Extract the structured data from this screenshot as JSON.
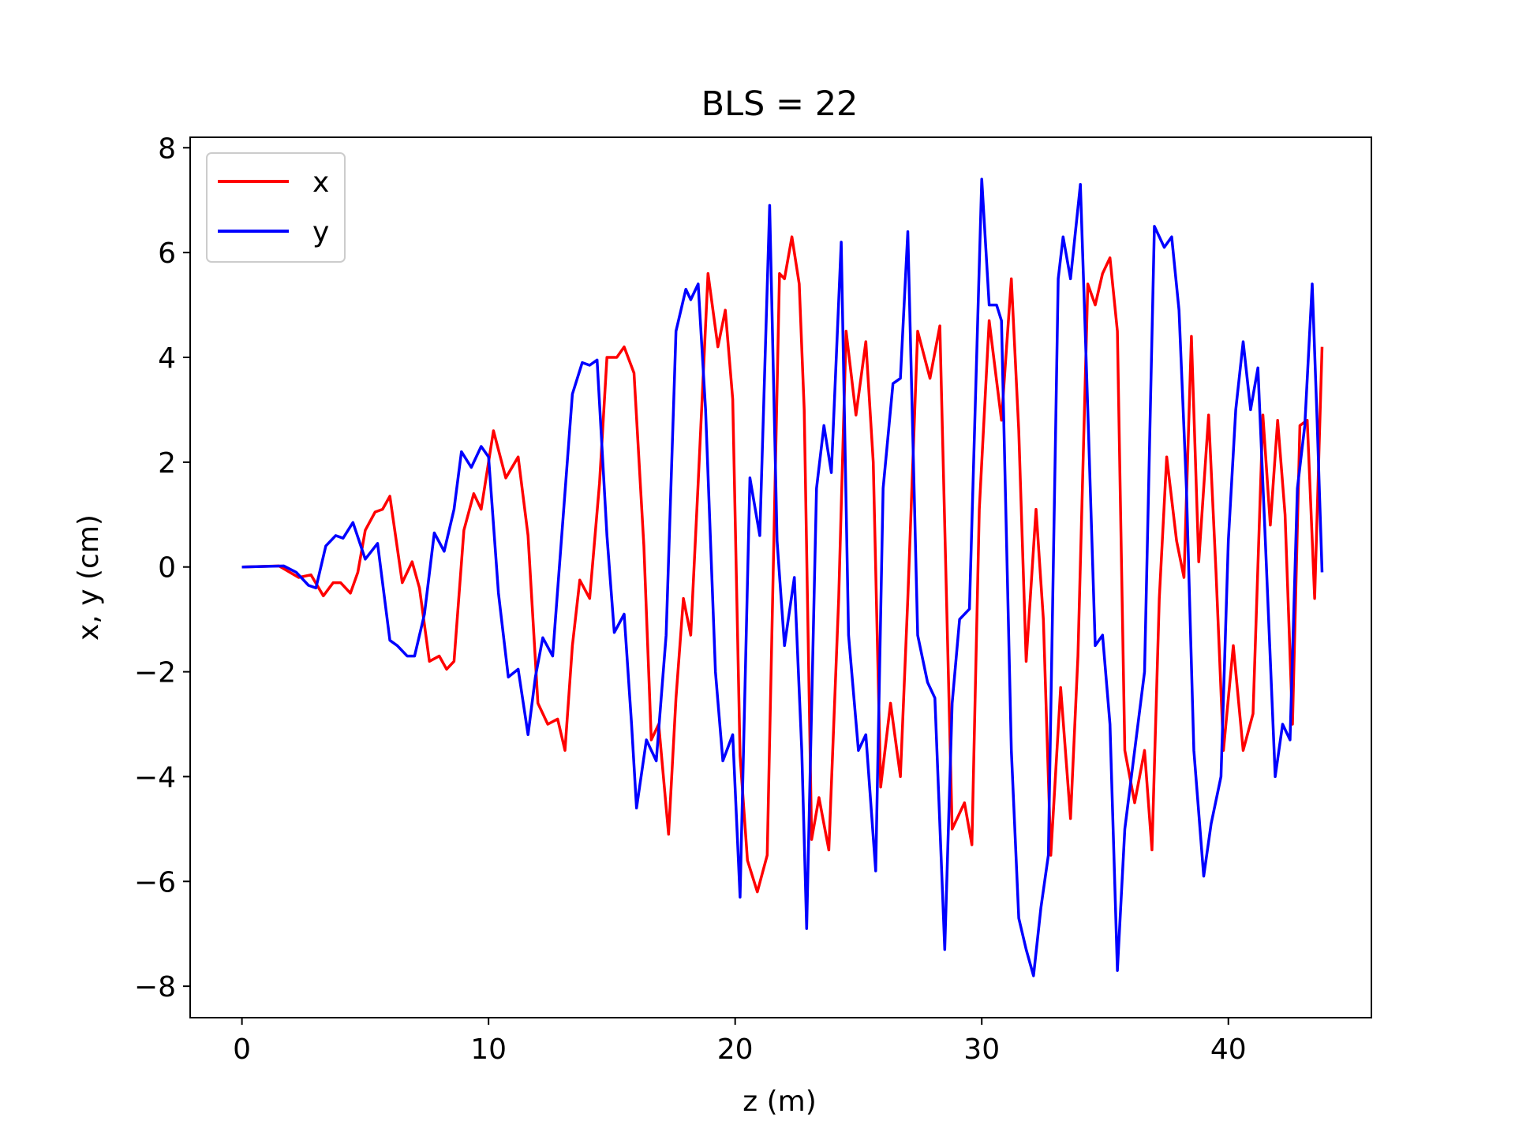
{
  "chart_data": {
    "type": "line",
    "title": "BLS = 22",
    "xlabel": "z (m)",
    "ylabel": "x, y (cm)",
    "xlim": [
      -2.1,
      45.8
    ],
    "ylim": [
      -8.6,
      8.2
    ],
    "xticks": [
      0,
      10,
      20,
      30,
      40
    ],
    "xtick_labels": [
      "0",
      "10",
      "20",
      "30",
      "40"
    ],
    "yticks": [
      -8,
      -6,
      -4,
      -2,
      0,
      2,
      4,
      6,
      8
    ],
    "ytick_labels": [
      "−8",
      "−6",
      "−4",
      "−2",
      "0",
      "2",
      "4",
      "6",
      "8"
    ],
    "grid": false,
    "legend": {
      "position": "upper-left",
      "entries": [
        "x",
        "y"
      ]
    },
    "series": [
      {
        "name": "x",
        "color": "#ff0000",
        "points": [
          [
            0,
            0
          ],
          [
            1.5,
            0.02
          ],
          [
            2.3,
            -0.2
          ],
          [
            2.8,
            -0.15
          ],
          [
            3.3,
            -0.55
          ],
          [
            3.7,
            -0.3
          ],
          [
            4.0,
            -0.3
          ],
          [
            4.4,
            -0.5
          ],
          [
            4.7,
            -0.1
          ],
          [
            5.0,
            0.7
          ],
          [
            5.4,
            1.05
          ],
          [
            5.7,
            1.1
          ],
          [
            6.0,
            1.35
          ],
          [
            6.5,
            -0.3
          ],
          [
            6.9,
            0.1
          ],
          [
            7.2,
            -0.4
          ],
          [
            7.6,
            -1.8
          ],
          [
            8.0,
            -1.7
          ],
          [
            8.3,
            -1.95
          ],
          [
            8.6,
            -1.8
          ],
          [
            9.0,
            0.7
          ],
          [
            9.4,
            1.4
          ],
          [
            9.7,
            1.1
          ],
          [
            10.2,
            2.6
          ],
          [
            10.7,
            1.7
          ],
          [
            11.2,
            2.1
          ],
          [
            11.6,
            0.6
          ],
          [
            12.0,
            -2.6
          ],
          [
            12.4,
            -3.0
          ],
          [
            12.8,
            -2.9
          ],
          [
            13.1,
            -3.5
          ],
          [
            13.4,
            -1.5
          ],
          [
            13.7,
            -0.25
          ],
          [
            14.1,
            -0.6
          ],
          [
            14.5,
            1.6
          ],
          [
            14.8,
            4.0
          ],
          [
            15.2,
            4.0
          ],
          [
            15.5,
            4.2
          ],
          [
            15.9,
            3.7
          ],
          [
            16.3,
            0.4
          ],
          [
            16.6,
            -3.3
          ],
          [
            16.9,
            -3.0
          ],
          [
            17.3,
            -5.1
          ],
          [
            17.6,
            -2.5
          ],
          [
            17.9,
            -0.6
          ],
          [
            18.2,
            -1.3
          ],
          [
            18.5,
            1.6
          ],
          [
            18.9,
            5.6
          ],
          [
            19.3,
            4.2
          ],
          [
            19.6,
            4.9
          ],
          [
            19.9,
            3.2
          ],
          [
            20.2,
            -3.6
          ],
          [
            20.5,
            -5.6
          ],
          [
            20.9,
            -6.2
          ],
          [
            21.3,
            -5.5
          ],
          [
            21.8,
            5.6
          ],
          [
            22.0,
            5.5
          ],
          [
            22.3,
            6.3
          ],
          [
            22.6,
            5.4
          ],
          [
            22.8,
            3.0
          ],
          [
            23.1,
            -5.2
          ],
          [
            23.4,
            -4.4
          ],
          [
            23.8,
            -5.4
          ],
          [
            24.2,
            -0.6
          ],
          [
            24.5,
            4.5
          ],
          [
            24.9,
            2.9
          ],
          [
            25.3,
            4.3
          ],
          [
            25.6,
            2.0
          ],
          [
            25.9,
            -4.2
          ],
          [
            26.3,
            -2.6
          ],
          [
            26.7,
            -4.0
          ],
          [
            27.0,
            -0.6
          ],
          [
            27.4,
            4.5
          ],
          [
            27.9,
            3.6
          ],
          [
            28.3,
            4.6
          ],
          [
            28.8,
            -5.0
          ],
          [
            29.3,
            -4.5
          ],
          [
            29.6,
            -5.3
          ],
          [
            29.9,
            1.1
          ],
          [
            30.3,
            4.7
          ],
          [
            30.8,
            2.8
          ],
          [
            31.2,
            5.5
          ],
          [
            31.5,
            2.6
          ],
          [
            31.8,
            -1.8
          ],
          [
            32.2,
            1.1
          ],
          [
            32.5,
            -1.0
          ],
          [
            32.8,
            -5.5
          ],
          [
            33.2,
            -2.3
          ],
          [
            33.6,
            -4.8
          ],
          [
            33.9,
            -1.7
          ],
          [
            34.3,
            5.4
          ],
          [
            34.6,
            5.0
          ],
          [
            34.9,
            5.6
          ],
          [
            35.2,
            5.9
          ],
          [
            35.5,
            4.5
          ],
          [
            35.8,
            -3.5
          ],
          [
            36.2,
            -4.5
          ],
          [
            36.6,
            -3.5
          ],
          [
            36.9,
            -5.4
          ],
          [
            37.2,
            -0.6
          ],
          [
            37.5,
            2.1
          ],
          [
            37.9,
            0.5
          ],
          [
            38.2,
            -0.2
          ],
          [
            38.5,
            4.4
          ],
          [
            38.8,
            0.1
          ],
          [
            39.2,
            2.9
          ],
          [
            39.5,
            -0.1
          ],
          [
            39.8,
            -3.5
          ],
          [
            40.2,
            -1.5
          ],
          [
            40.6,
            -3.5
          ],
          [
            41.0,
            -2.8
          ],
          [
            41.4,
            2.9
          ],
          [
            41.7,
            0.8
          ],
          [
            42.0,
            2.8
          ],
          [
            42.3,
            1.0
          ],
          [
            42.6,
            -3.0
          ],
          [
            42.9,
            2.7
          ],
          [
            43.2,
            2.8
          ],
          [
            43.5,
            -0.6
          ],
          [
            43.8,
            4.2
          ]
        ]
      },
      {
        "name": "y",
        "color": "#0000ff",
        "points": [
          [
            0,
            0
          ],
          [
            1.7,
            0.02
          ],
          [
            2.2,
            -0.1
          ],
          [
            2.7,
            -0.35
          ],
          [
            3.0,
            -0.4
          ],
          [
            3.4,
            0.4
          ],
          [
            3.8,
            0.6
          ],
          [
            4.1,
            0.55
          ],
          [
            4.5,
            0.85
          ],
          [
            5.0,
            0.15
          ],
          [
            5.5,
            0.45
          ],
          [
            6.0,
            -1.4
          ],
          [
            6.3,
            -1.5
          ],
          [
            6.7,
            -1.7
          ],
          [
            7.0,
            -1.7
          ],
          [
            7.4,
            -0.9
          ],
          [
            7.8,
            0.65
          ],
          [
            8.2,
            0.3
          ],
          [
            8.6,
            1.1
          ],
          [
            8.9,
            2.2
          ],
          [
            9.3,
            1.9
          ],
          [
            9.7,
            2.3
          ],
          [
            10.0,
            2.1
          ],
          [
            10.4,
            -0.5
          ],
          [
            10.8,
            -2.1
          ],
          [
            11.2,
            -1.95
          ],
          [
            11.6,
            -3.2
          ],
          [
            11.9,
            -2.1
          ],
          [
            12.2,
            -1.35
          ],
          [
            12.6,
            -1.7
          ],
          [
            13.0,
            0.8
          ],
          [
            13.4,
            3.3
          ],
          [
            13.8,
            3.9
          ],
          [
            14.1,
            3.85
          ],
          [
            14.4,
            3.95
          ],
          [
            14.8,
            0.6
          ],
          [
            15.1,
            -1.25
          ],
          [
            15.5,
            -0.9
          ],
          [
            15.8,
            -3.0
          ],
          [
            16.0,
            -4.6
          ],
          [
            16.4,
            -3.3
          ],
          [
            16.8,
            -3.7
          ],
          [
            17.2,
            -1.3
          ],
          [
            17.6,
            4.5
          ],
          [
            18.0,
            5.3
          ],
          [
            18.2,
            5.1
          ],
          [
            18.5,
            5.4
          ],
          [
            18.8,
            3.0
          ],
          [
            19.2,
            -2.0
          ],
          [
            19.5,
            -3.7
          ],
          [
            19.9,
            -3.2
          ],
          [
            20.2,
            -6.3
          ],
          [
            20.6,
            1.7
          ],
          [
            21.0,
            0.6
          ],
          [
            21.4,
            6.9
          ],
          [
            21.7,
            0.5
          ],
          [
            22.0,
            -1.5
          ],
          [
            22.4,
            -0.2
          ],
          [
            22.7,
            -3.5
          ],
          [
            22.9,
            -6.9
          ],
          [
            23.3,
            1.5
          ],
          [
            23.6,
            2.7
          ],
          [
            23.9,
            1.8
          ],
          [
            24.3,
            6.2
          ],
          [
            24.6,
            -1.3
          ],
          [
            25.0,
            -3.5
          ],
          [
            25.3,
            -3.2
          ],
          [
            25.7,
            -5.8
          ],
          [
            26.0,
            1.5
          ],
          [
            26.4,
            3.5
          ],
          [
            26.7,
            3.6
          ],
          [
            27.0,
            6.4
          ],
          [
            27.4,
            -1.3
          ],
          [
            27.8,
            -2.2
          ],
          [
            28.1,
            -2.5
          ],
          [
            28.5,
            -7.3
          ],
          [
            28.8,
            -2.6
          ],
          [
            29.1,
            -1.0
          ],
          [
            29.5,
            -0.8
          ],
          [
            30.0,
            7.4
          ],
          [
            30.3,
            5.0
          ],
          [
            30.6,
            5.0
          ],
          [
            30.8,
            4.7
          ],
          [
            31.2,
            -3.5
          ],
          [
            31.5,
            -6.7
          ],
          [
            31.8,
            -7.3
          ],
          [
            32.1,
            -7.8
          ],
          [
            32.4,
            -6.5
          ],
          [
            32.7,
            -5.5
          ],
          [
            33.1,
            5.5
          ],
          [
            33.3,
            6.3
          ],
          [
            33.6,
            5.5
          ],
          [
            34.0,
            7.3
          ],
          [
            34.3,
            3.0
          ],
          [
            34.6,
            -1.5
          ],
          [
            34.9,
            -1.3
          ],
          [
            35.2,
            -3.0
          ],
          [
            35.5,
            -7.7
          ],
          [
            35.8,
            -5.0
          ],
          [
            36.2,
            -3.5
          ],
          [
            36.6,
            -2.0
          ],
          [
            37.0,
            6.5
          ],
          [
            37.4,
            6.1
          ],
          [
            37.7,
            6.3
          ],
          [
            38.0,
            4.9
          ],
          [
            38.3,
            1.5
          ],
          [
            38.6,
            -3.5
          ],
          [
            39.0,
            -5.9
          ],
          [
            39.3,
            -4.9
          ],
          [
            39.7,
            -4.0
          ],
          [
            40.0,
            0.5
          ],
          [
            40.3,
            3.0
          ],
          [
            40.6,
            4.3
          ],
          [
            40.9,
            3.0
          ],
          [
            41.2,
            3.8
          ],
          [
            41.5,
            0.5
          ],
          [
            41.9,
            -4.0
          ],
          [
            42.2,
            -3.0
          ],
          [
            42.5,
            -3.3
          ],
          [
            42.8,
            1.5
          ],
          [
            43.1,
            2.7
          ],
          [
            43.4,
            5.4
          ],
          [
            43.6,
            2.8
          ],
          [
            43.8,
            -0.1
          ]
        ]
      }
    ]
  }
}
